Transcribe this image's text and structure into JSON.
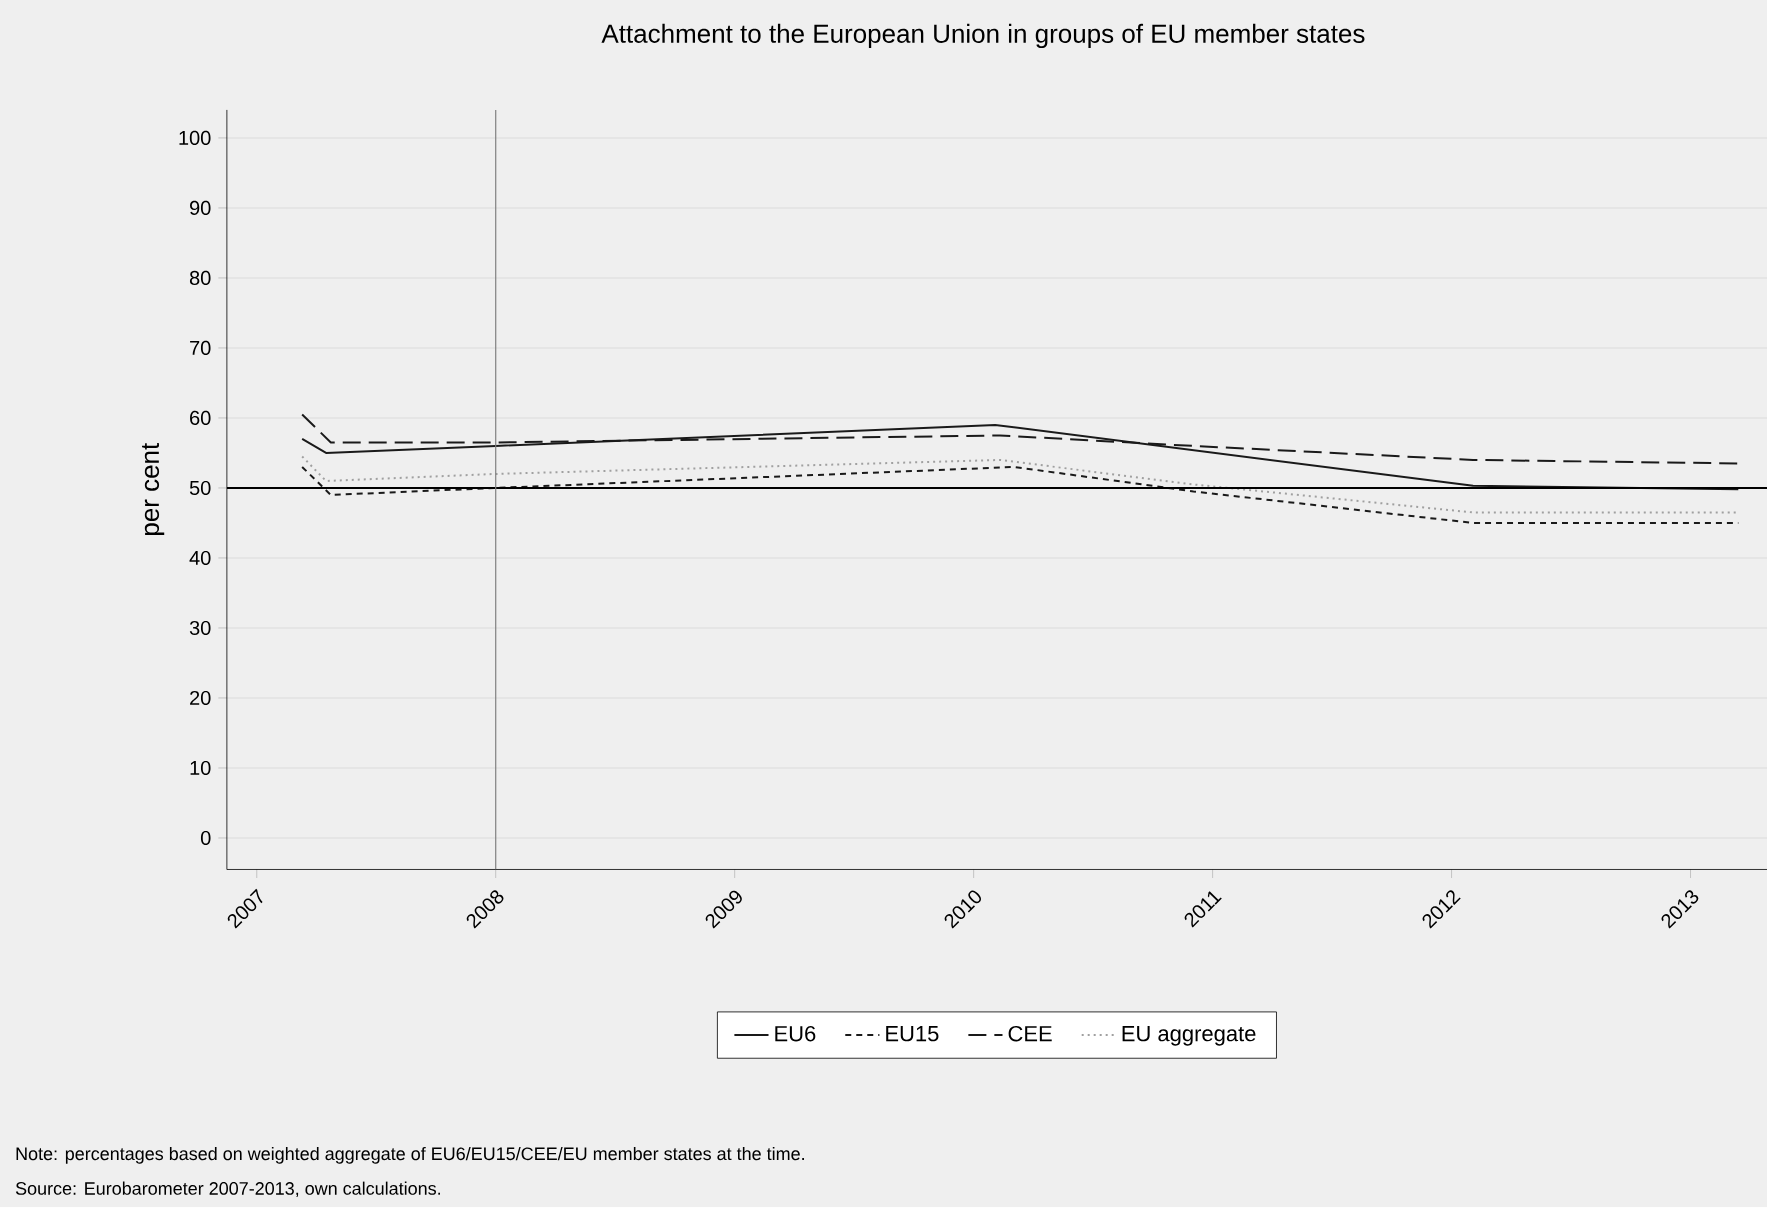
{
  "chart_data": {
    "type": "line",
    "title": "Attachment to the European Union in groups of EU member states",
    "ylabel": "per cent",
    "xlim": [
      2006.875,
      2013.32
    ],
    "ylim": [
      -4.5,
      104
    ],
    "xticks": [
      2007,
      2008,
      2009,
      2010,
      2011,
      2012,
      2013
    ],
    "yticks": [
      0,
      10,
      20,
      30,
      40,
      50,
      60,
      70,
      80,
      90,
      100
    ],
    "grid": "y",
    "legend": "bottom",
    "marker": "none",
    "series": [
      {
        "name": "EU6",
        "color": "#1a1a1a",
        "line_style": "solid",
        "x": [
          2007.19,
          2007.29,
          2008.0,
          2010.09,
          2012.09,
          2013.2
        ],
        "values": [
          57,
          55,
          56,
          59,
          50.3,
          49.8
        ]
      },
      {
        "name": "EU15",
        "color": "#1a1a1a",
        "line_style": "dashed",
        "x": [
          2007.19,
          2007.31,
          2008.0,
          2010.17,
          2010.92,
          2012.09,
          2013.2
        ],
        "values": [
          53,
          49,
          50,
          53,
          49.5,
          45,
          45
        ]
      },
      {
        "name": "CEE",
        "color": "#1a1a1a",
        "line_style": "longdash",
        "x": [
          2007.19,
          2007.31,
          2008.0,
          2010.11,
          2010.92,
          2012.09,
          2013.2
        ],
        "values": [
          60.5,
          56.5,
          56.5,
          57.5,
          56,
          54,
          53.5
        ]
      },
      {
        "name": "EU aggregate",
        "color": "#a0a0a0",
        "line_style": "dotted",
        "x": [
          2007.19,
          2007.29,
          2008.0,
          2010.11,
          2010.92,
          2012.09,
          2013.2
        ],
        "values": [
          54.5,
          51,
          52,
          54,
          50.5,
          46.5,
          46.5
        ]
      }
    ],
    "ref_lines": [
      {
        "axis": "y",
        "value": 50,
        "color": "#000000",
        "line_style": "solid"
      },
      {
        "axis": "x",
        "value": 2008,
        "color": "#808080",
        "line_style": "solid"
      }
    ],
    "annotations": [
      "Note: percentages based on weighted aggregate of EU6/EU15/CEE/EU member states at the time.",
      "Source: Eurobarometer 2007-2013, own calculations."
    ]
  }
}
